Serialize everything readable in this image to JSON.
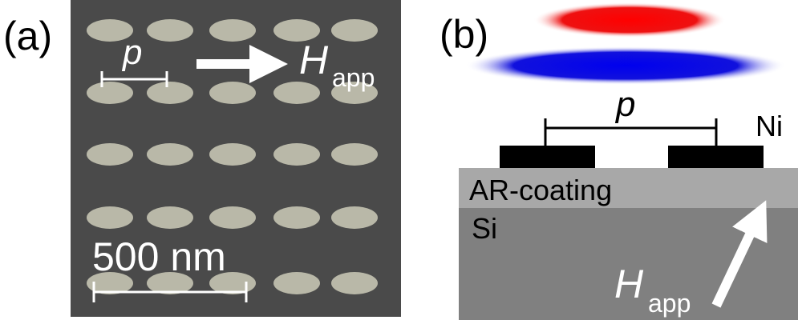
{
  "panel_a": {
    "label": "(a)",
    "period": "p",
    "field": "H",
    "field_sub": "app",
    "scale": "500 nm"
  },
  "panel_b": {
    "label": "(b)",
    "period": "p",
    "metal": "Ni",
    "coating": "AR-coating",
    "substrate": "Si",
    "field": "H",
    "field_sub": "app"
  }
}
